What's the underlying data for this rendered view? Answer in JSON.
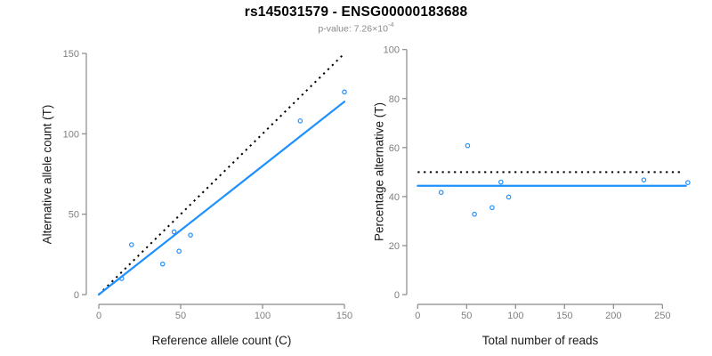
{
  "header": {
    "title": "rs145031579 - ENSG00000183688",
    "p_value_base": "p-value: 7.26×10",
    "p_value_exponent": "-4"
  },
  "colors": {
    "accent_blue": "#1E90FF",
    "dotted_line": "#000000",
    "axis_line": "#898989",
    "tick_label": "#7f7f7f",
    "axis_title": "#1a1a1a",
    "subtitle_gray": "#8a8a8a",
    "background": "#ffffff"
  },
  "chart_data": [
    {
      "type": "scatter",
      "name": "allele-counts-scatter",
      "xlabel": "Reference allele count (C)",
      "ylabel": "Alternative allele count (T)",
      "xlim": [
        0,
        152
      ],
      "ylim": [
        0,
        152
      ],
      "xticks": [
        0,
        50,
        100,
        150
      ],
      "yticks": [
        0,
        50,
        100,
        150
      ],
      "grid": false,
      "legend": "none",
      "marker": "open-circle",
      "points": [
        [
          14,
          10
        ],
        [
          20,
          31
        ],
        [
          39,
          19
        ],
        [
          46,
          39
        ],
        [
          49,
          27
        ],
        [
          56,
          37
        ],
        [
          123,
          108
        ],
        [
          150,
          126
        ]
      ],
      "lines": [
        {
          "name": "identity-line",
          "style": "dotted",
          "color": "#000000",
          "x1": 0,
          "y1": 0,
          "x2": 150,
          "y2": 150
        },
        {
          "name": "fit-line",
          "style": "solid",
          "color": "#1E90FF",
          "x1": 0,
          "y1": 0,
          "x2": 150,
          "y2": 120
        }
      ]
    },
    {
      "type": "scatter",
      "name": "percentage-alternative-scatter",
      "xlabel": "Total number of reads",
      "ylabel": "Percentage alternative (T)",
      "xlim": [
        0,
        278
      ],
      "ylim": [
        0,
        100
      ],
      "xticks": [
        0,
        50,
        100,
        150,
        200,
        250
      ],
      "yticks": [
        0,
        20,
        40,
        60,
        80,
        100
      ],
      "grid": false,
      "legend": "none",
      "marker": "open-circle",
      "points": [
        [
          24,
          41.7
        ],
        [
          51,
          60.8
        ],
        [
          58,
          32.8
        ],
        [
          76,
          35.5
        ],
        [
          85,
          45.9
        ],
        [
          93,
          39.8
        ],
        [
          231,
          46.8
        ],
        [
          276,
          45.7
        ]
      ],
      "lines": [
        {
          "name": "expected-50pct-line",
          "style": "dotted",
          "color": "#000000",
          "x1": 0,
          "y1": 50,
          "x2": 271,
          "y2": 50
        },
        {
          "name": "mean-ratio-line",
          "style": "solid",
          "color": "#1E90FF",
          "x1": 0,
          "y1": 44.4,
          "x2": 274,
          "y2": 44.4
        }
      ]
    }
  ]
}
